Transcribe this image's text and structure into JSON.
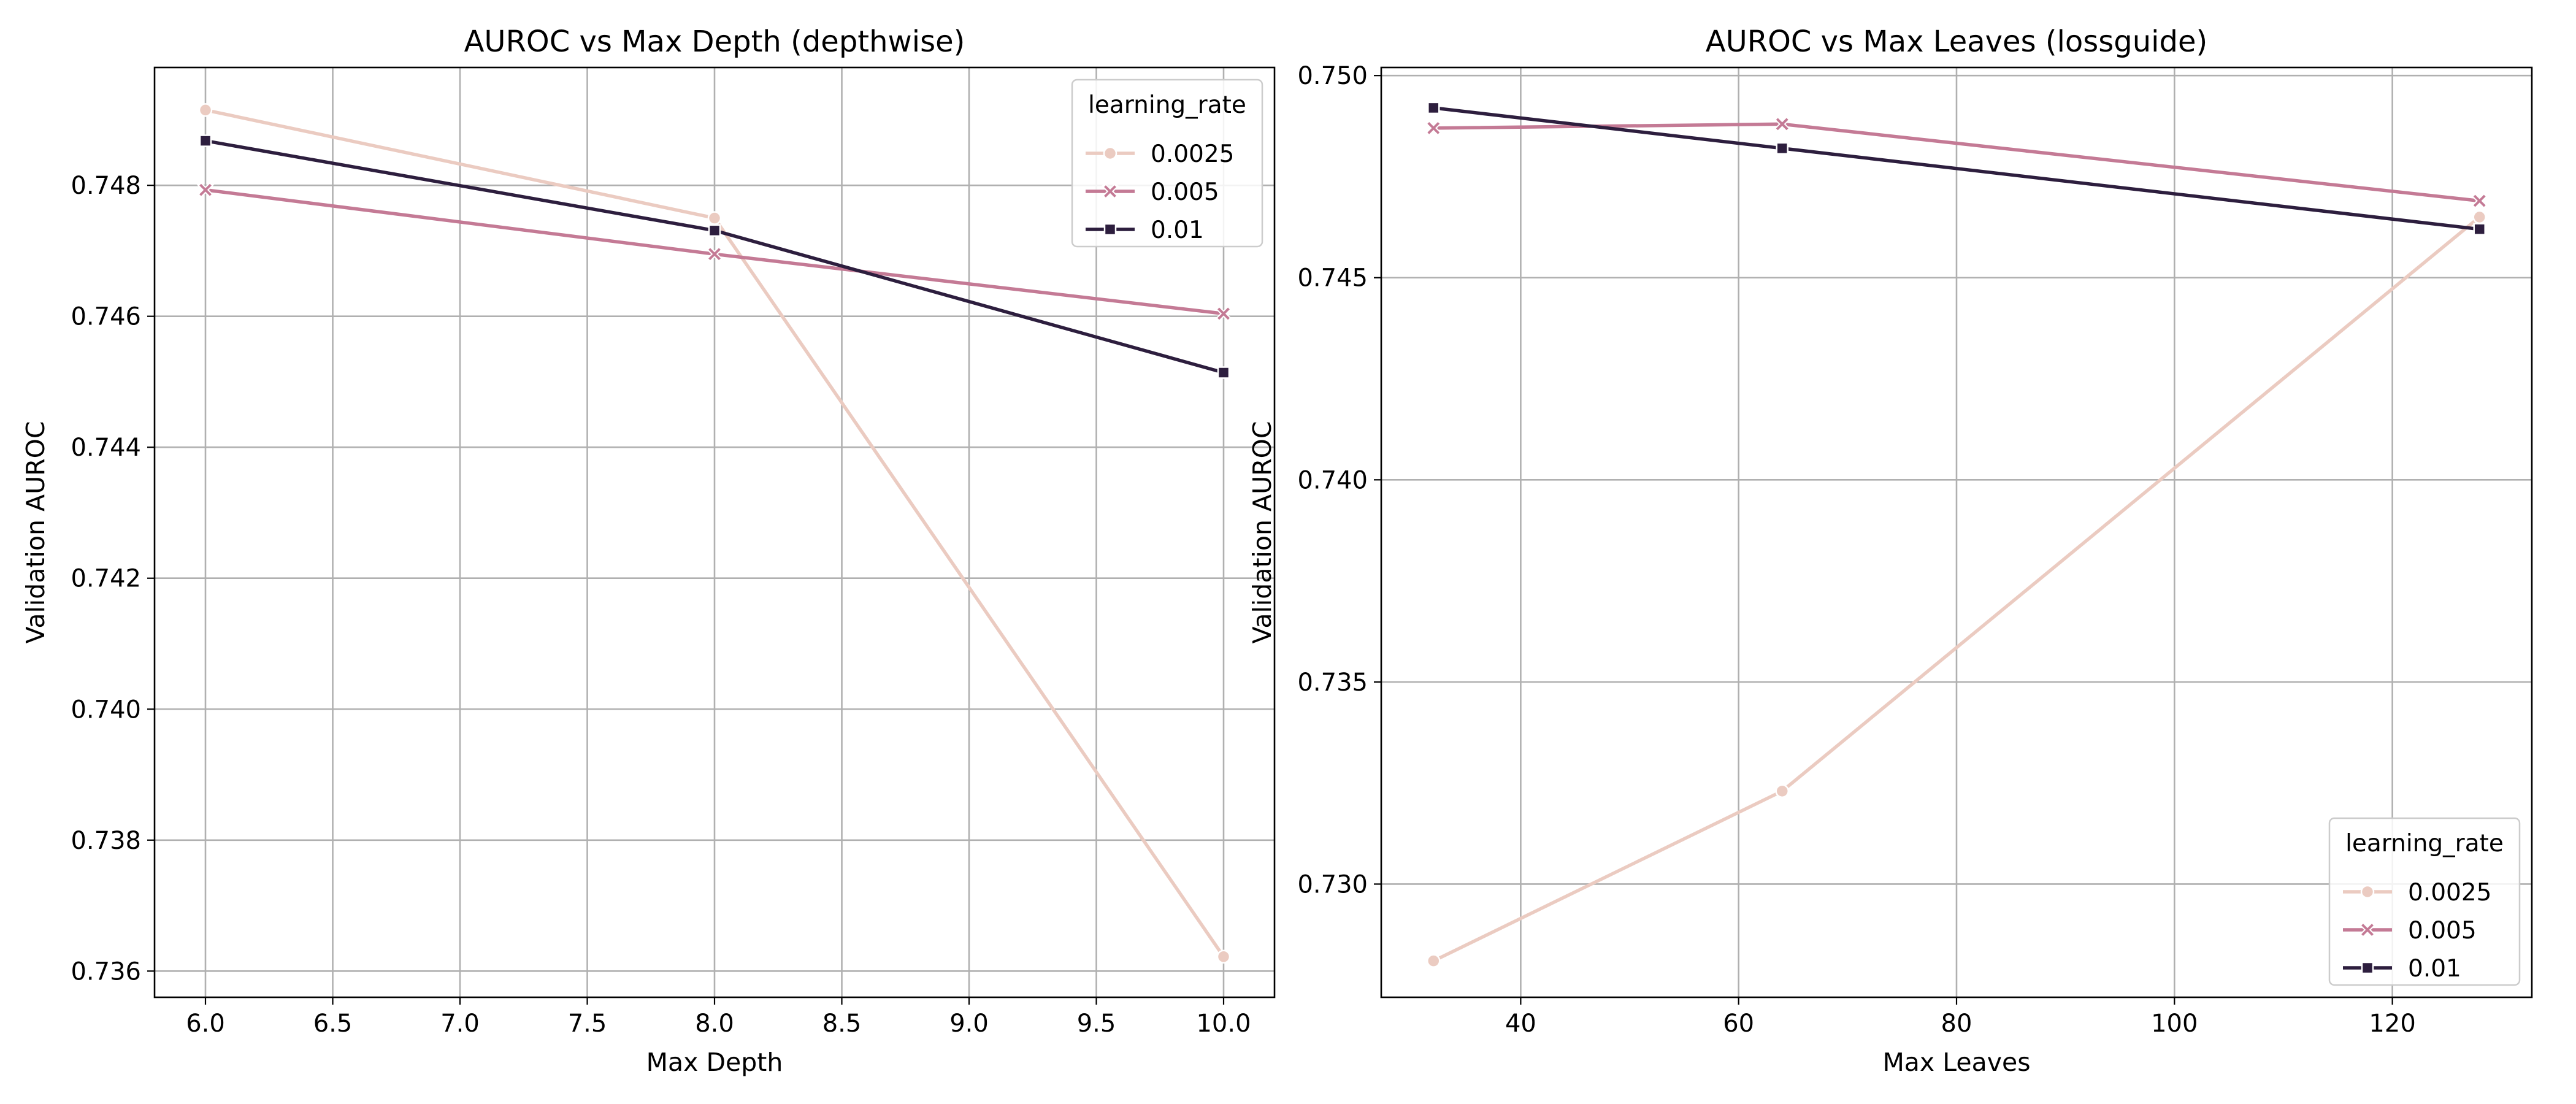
{
  "chart_data": [
    {
      "type": "line",
      "title": "AUROC vs Max Depth (depthwise)",
      "xlabel": "Max Depth",
      "ylabel": "Validation AUROC",
      "xlim": [
        5.8,
        10.2
      ],
      "ylim": [
        0.7356,
        0.7498
      ],
      "xticks": [
        6.0,
        6.5,
        7.0,
        7.5,
        8.0,
        8.5,
        9.0,
        9.5,
        10.0
      ],
      "xtick_labels": [
        "6.0",
        "6.5",
        "7.0",
        "7.5",
        "8.0",
        "8.5",
        "9.0",
        "9.5",
        "10.0"
      ],
      "yticks": [
        0.736,
        0.738,
        0.74,
        0.742,
        0.744,
        0.746,
        0.748
      ],
      "ytick_labels": [
        "0.736",
        "0.738",
        "0.740",
        "0.742",
        "0.744",
        "0.746",
        "0.748"
      ],
      "grid": true,
      "legend": {
        "title": "learning_rate",
        "position": "top-right"
      },
      "x": [
        6,
        8,
        10
      ],
      "series": [
        {
          "name": "0.0025",
          "values": [
            0.74915,
            0.7475,
            0.73622
          ],
          "color": "#ebcbc1",
          "marker": "circle"
        },
        {
          "name": "0.005",
          "values": [
            0.74793,
            0.74695,
            0.74604
          ],
          "color": "#c47a95",
          "marker": "x"
        },
        {
          "name": "0.01",
          "values": [
            0.74868,
            0.74731,
            0.74514
          ],
          "color": "#2d1e3e",
          "marker": "square"
        }
      ]
    },
    {
      "type": "line",
      "title": "AUROC vs Max Leaves (lossguide)",
      "xlabel": "Max Leaves",
      "ylabel": "Validation AUROC",
      "xlim": [
        27.2,
        132.8
      ],
      "ylim": [
        0.7272,
        0.7502
      ],
      "xticks": [
        40,
        60,
        80,
        100,
        120
      ],
      "xtick_labels": [
        "40",
        "60",
        "80",
        "100",
        "120"
      ],
      "yticks": [
        0.73,
        0.735,
        0.74,
        0.745,
        0.75
      ],
      "ytick_labels": [
        "0.730",
        "0.735",
        "0.740",
        "0.745",
        "0.750"
      ],
      "grid": true,
      "legend": {
        "title": "learning_rate",
        "position": "bottom-right"
      },
      "x": [
        32,
        64,
        128
      ],
      "series": [
        {
          "name": "0.0025",
          "values": [
            0.7281,
            0.7323,
            0.7465
          ],
          "color": "#ebcbc1",
          "marker": "circle"
        },
        {
          "name": "0.005",
          "values": [
            0.7487,
            0.7488,
            0.7469
          ],
          "color": "#c47a95",
          "marker": "x"
        },
        {
          "name": "0.01",
          "values": [
            0.7492,
            0.7482,
            0.7462
          ],
          "color": "#2d1e3e",
          "marker": "square"
        }
      ]
    }
  ]
}
